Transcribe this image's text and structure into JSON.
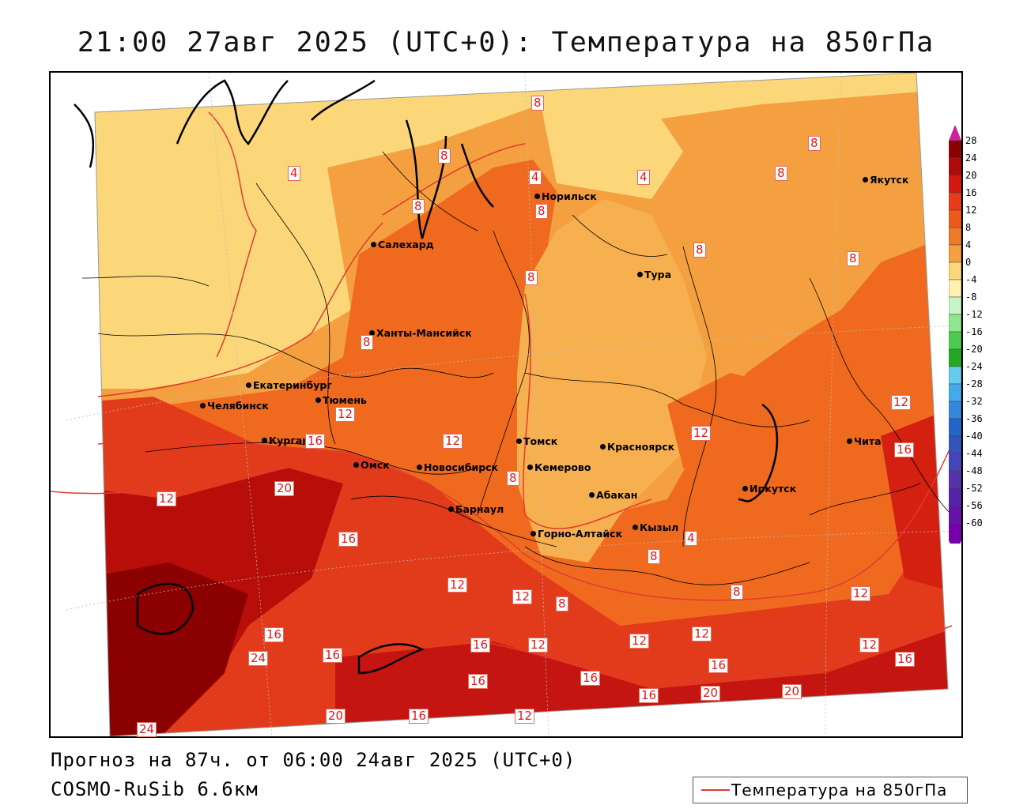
{
  "title": "21:00 27авг 2025 (UTC+0): Температура на 850гПа",
  "footer": {
    "forecast": "Прогноз на 87ч. от 06:00 24авг 2025 (UTC+0)",
    "model": "COSMO-RuSib 6.6км"
  },
  "legend": {
    "label": "Температура на 850гПа",
    "line_color": "#e23b2e"
  },
  "colorbar": {
    "ticks": [
      "28",
      "24",
      "20",
      "16",
      "12",
      "8",
      "4",
      "0",
      "-4",
      "-8",
      "-12",
      "-16",
      "-20",
      "-24",
      "-28",
      "-32",
      "-36",
      "-40",
      "-44",
      "-48",
      "-52",
      "-56",
      "-60"
    ],
    "colors": [
      "#8b0000",
      "#b00a0a",
      "#d41a10",
      "#e83c18",
      "#ef5a1c",
      "#f07a28",
      "#f5a040",
      "#fbd77a",
      "#fff1b0",
      "#c8f5c8",
      "#8ee68e",
      "#4ccc4c",
      "#22aa22",
      "#66ccee",
      "#44aaee",
      "#3388dd",
      "#2266cc",
      "#3355bb",
      "#4444bb",
      "#5533aa",
      "#5522aa",
      "#6611aa",
      "#7700aa"
    ]
  },
  "cities": [
    {
      "name": "Якутск"
    },
    {
      "name": "Норильск"
    },
    {
      "name": "Салехард"
    },
    {
      "name": "Тура"
    },
    {
      "name": "Ханты-Мансийск"
    },
    {
      "name": "Екатеринбург"
    },
    {
      "name": "Тюмень"
    },
    {
      "name": "Челябинск"
    },
    {
      "name": "Курган"
    },
    {
      "name": "Томск"
    },
    {
      "name": "Красноярск"
    },
    {
      "name": "Чита"
    },
    {
      "name": "Омск"
    },
    {
      "name": "Новосибирск"
    },
    {
      "name": "Кемерово"
    },
    {
      "name": "Абакан"
    },
    {
      "name": "Иркутск"
    },
    {
      "name": "Барнаул"
    },
    {
      "name": "Горно-Алтайск"
    },
    {
      "name": "Кызыл"
    }
  ],
  "contour_labels": [
    "8",
    "8",
    "4",
    "4",
    "8",
    "8",
    "8",
    "8",
    "8",
    "8",
    "4",
    "8",
    "12",
    "8",
    "16",
    "12",
    "16",
    "12",
    "12",
    "20",
    "12",
    "16",
    "16",
    "8",
    "4",
    "8",
    "8",
    "12",
    "12",
    "12",
    "8",
    "12",
    "16",
    "12",
    "12",
    "12",
    "16",
    "16",
    "20",
    "24",
    "16",
    "16",
    "16",
    "20",
    "20",
    "16",
    "12",
    "16",
    "24"
  ]
}
